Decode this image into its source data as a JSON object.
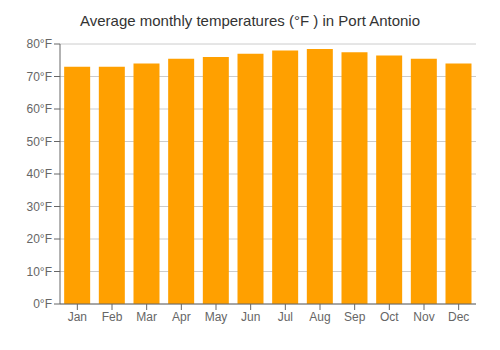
{
  "chart_data": {
    "type": "bar",
    "title": "Average monthly temperatures (°F ) in Port Antonio",
    "categories": [
      "Jan",
      "Feb",
      "Mar",
      "Apr",
      "May",
      "Jun",
      "Jul",
      "Aug",
      "Sep",
      "Oct",
      "Nov",
      "Dec"
    ],
    "values": [
      73,
      73,
      74,
      75.5,
      76,
      77,
      78,
      78.5,
      77.5,
      76.5,
      75.5,
      74
    ],
    "color": "#FFA000",
    "ylim": [
      0,
      80
    ],
    "yticks": [
      {
        "value": 0,
        "label": "0°F"
      },
      {
        "value": 10,
        "label": "10°F"
      },
      {
        "value": 20,
        "label": "20°F"
      },
      {
        "value": 30,
        "label": "30°F"
      },
      {
        "value": 40,
        "label": "40°F"
      },
      {
        "value": 50,
        "label": "50°F"
      },
      {
        "value": 60,
        "label": "60°F"
      },
      {
        "value": 70,
        "label": "70°F"
      },
      {
        "value": 80,
        "label": "80°F"
      }
    ],
    "grid": true
  }
}
